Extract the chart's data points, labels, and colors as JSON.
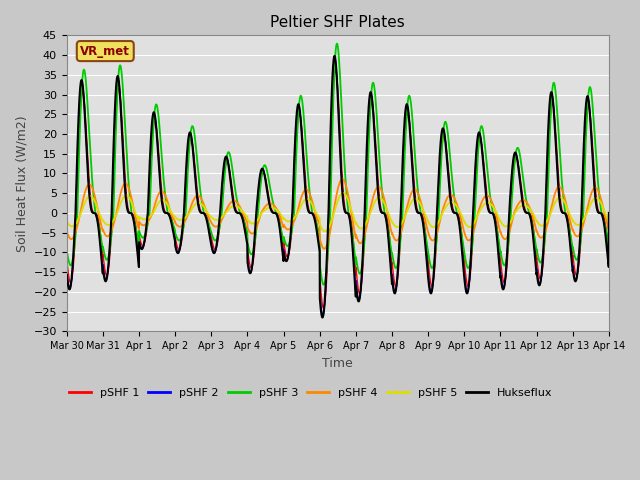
{
  "title": "Peltier SHF Plates",
  "xlabel": "Time",
  "ylabel": "Soil Heat Flux (W/m2)",
  "ylim": [
    -30,
    45
  ],
  "yticks": [
    -30,
    -25,
    -20,
    -15,
    -10,
    -5,
    0,
    5,
    10,
    15,
    20,
    25,
    30,
    35,
    40,
    45
  ],
  "annotation": "VR_met",
  "series_colors": {
    "pSHF 1": "#ff0000",
    "pSHF 2": "#0000ff",
    "pSHF 3": "#00cc00",
    "pSHF 4": "#ff8800",
    "pSHF 5": "#dddd00",
    "Hukseflux": "#000000"
  },
  "line_widths": {
    "pSHF 1": 1.0,
    "pSHF 2": 1.0,
    "pSHF 3": 1.3,
    "pSHF 4": 1.3,
    "pSHF 5": 1.3,
    "Hukseflux": 1.5
  },
  "n_days": 15,
  "n_points": 3600,
  "day_peak_amps": [
    33,
    34,
    25,
    20,
    14,
    11,
    27,
    39,
    30,
    27,
    21,
    20,
    15,
    30,
    29
  ],
  "day_trough_amps": [
    -19,
    -17,
    -9,
    -10,
    -10,
    -15,
    -12,
    -26,
    -22,
    -20,
    -20,
    -20,
    -19,
    -18,
    -17
  ]
}
